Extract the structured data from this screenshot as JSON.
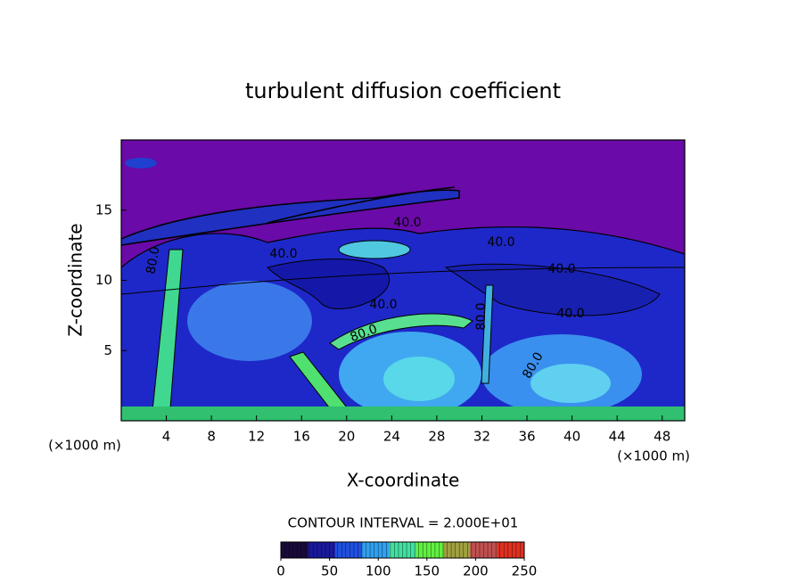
{
  "chart_data": {
    "type": "contour",
    "title": "turbulent diffusion coefficient",
    "x_label": "X-coordinate",
    "y_label": "Z-coordinate",
    "x_unit": "(×1000 m)",
    "xlim": [
      0,
      50
    ],
    "ylim": [
      0,
      20
    ],
    "xticks": [
      4,
      8,
      12,
      16,
      20,
      24,
      28,
      32,
      36,
      40,
      44,
      48
    ],
    "yticks": [
      5,
      10,
      15
    ],
    "contour_interval": "CONTOUR INTERVAL = 2.000E+01",
    "contour_labels": [
      "40.0",
      "40.0",
      "40.0",
      "40.0",
      "40.0",
      "40.0",
      "80.0",
      "80.0",
      "80.0",
      "80.0"
    ],
    "colorbar": {
      "lim": [
        0,
        250
      ],
      "ticks": [
        0,
        50,
        100,
        150,
        200,
        250
      ],
      "colors": [
        "#1a0a3a",
        "#1a1a9a",
        "#2050e0",
        "#30a0f0",
        "#40e0a0",
        "#60f040",
        "#a0a040",
        "#c05050",
        "#e03020"
      ]
    }
  }
}
